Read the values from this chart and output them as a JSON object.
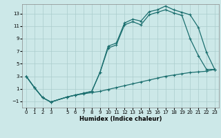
{
  "xlabel": "Humidex (Indice chaleur)",
  "xlim": [
    -0.5,
    23.5
  ],
  "ylim": [
    -2.0,
    14.5
  ],
  "xticks": [
    0,
    1,
    2,
    3,
    5,
    6,
    7,
    8,
    9,
    10,
    11,
    12,
    13,
    14,
    15,
    16,
    17,
    18,
    19,
    20,
    21,
    22,
    23
  ],
  "yticks": [
    -1,
    1,
    3,
    5,
    7,
    9,
    11,
    13
  ],
  "bg_color": "#cce8e8",
  "grid_color": "#aacccc",
  "line_color": "#1a6e6e",
  "line1_x": [
    0,
    1,
    2,
    3,
    5,
    6,
    7,
    8,
    9,
    10,
    11,
    12,
    13,
    14,
    15,
    16,
    17,
    18,
    19,
    20,
    21,
    22,
    23
  ],
  "line1_y": [
    3.0,
    1.2,
    -0.4,
    -1.1,
    -0.3,
    0.0,
    0.3,
    0.6,
    3.6,
    7.8,
    8.3,
    11.5,
    12.1,
    11.8,
    13.3,
    13.6,
    14.2,
    13.6,
    13.2,
    12.8,
    10.8,
    6.8,
    4.1
  ],
  "line2_x": [
    0,
    1,
    2,
    3,
    5,
    6,
    7,
    8,
    9,
    10,
    11,
    12,
    13,
    14,
    15,
    16,
    17,
    18,
    19,
    20,
    21,
    22,
    23
  ],
  "line2_y": [
    3.0,
    1.2,
    -0.4,
    -1.1,
    -0.3,
    0.0,
    0.3,
    0.6,
    3.6,
    7.5,
    8.0,
    11.2,
    11.7,
    11.2,
    12.8,
    13.2,
    13.6,
    13.1,
    12.7,
    9.0,
    6.3,
    4.1,
    4.1
  ],
  "line3_x": [
    0,
    1,
    2,
    3,
    5,
    6,
    7,
    8,
    9,
    10,
    11,
    12,
    13,
    14,
    15,
    16,
    17,
    18,
    19,
    20,
    21,
    22,
    23
  ],
  "line3_y": [
    3.0,
    1.2,
    -0.4,
    -1.1,
    -0.3,
    0.0,
    0.2,
    0.4,
    0.6,
    0.9,
    1.2,
    1.5,
    1.8,
    2.1,
    2.4,
    2.7,
    3.0,
    3.2,
    3.4,
    3.6,
    3.7,
    3.8,
    4.1
  ]
}
